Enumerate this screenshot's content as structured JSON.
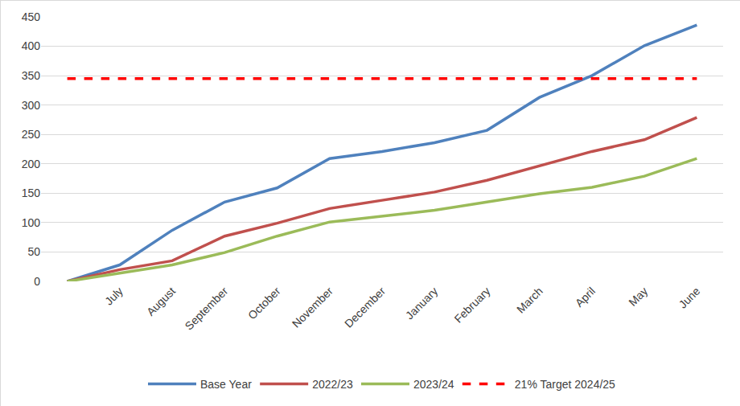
{
  "chart_data": {
    "type": "line",
    "categories": [
      null,
      "July",
      "August",
      "September",
      "October",
      "November",
      "December",
      "January",
      "February",
      "March",
      "April",
      "May",
      "June"
    ],
    "series": [
      {
        "name": "Base Year",
        "color": "#4f81bd",
        "line_style": "solid",
        "values": [
          0,
          28,
          87,
          135,
          159,
          209,
          221,
          236,
          257,
          313,
          350,
          401,
          436
        ]
      },
      {
        "name": "2022/23",
        "color": "#c0504d",
        "line_style": "solid",
        "values": [
          0,
          20,
          35,
          77,
          99,
          124,
          138,
          152,
          172,
          196,
          221,
          241,
          279
        ]
      },
      {
        "name": "2023/24",
        "color": "#9bbb59",
        "line_style": "solid",
        "values": [
          0,
          14,
          28,
          49,
          77,
          101,
          111,
          121,
          135,
          149,
          160,
          179,
          209
        ]
      },
      {
        "name": "21% Target 2024/25",
        "color": "#ff0000",
        "line_style": "dashed",
        "values": [
          345,
          345,
          345,
          345,
          345,
          345,
          345,
          345,
          345,
          345,
          345,
          345,
          345
        ]
      }
    ],
    "ylim": [
      0,
      450
    ],
    "yticks": [
      0,
      50,
      100,
      150,
      200,
      250,
      300,
      350,
      400,
      450
    ],
    "grid": true,
    "legend": "bottom"
  }
}
